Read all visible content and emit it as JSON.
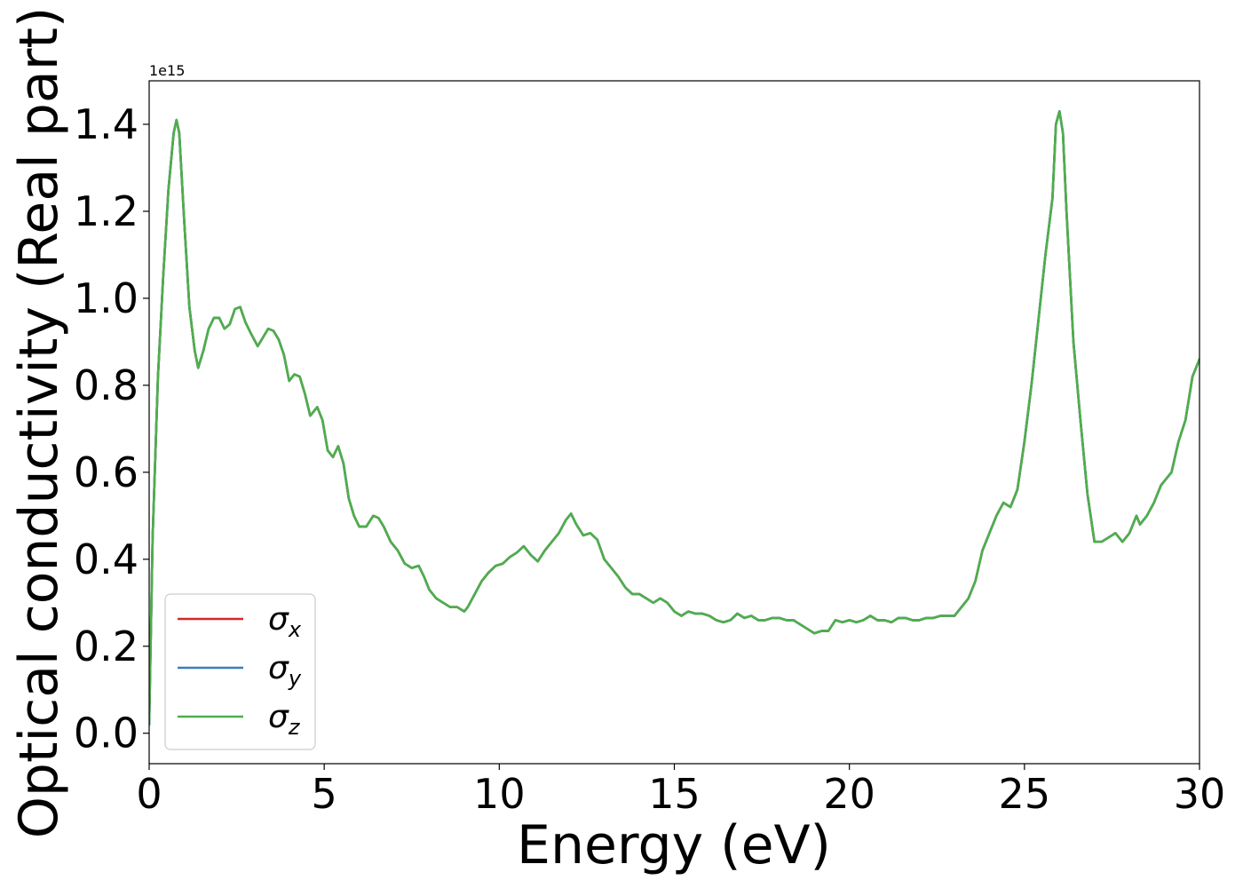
{
  "chart_data": {
    "type": "line",
    "title": "",
    "xlabel": "Energy (eV)",
    "ylabel": "Optical conductivity (Real part)",
    "y_offset_text": "1e15",
    "y_multiplier": 1000000000000000.0,
    "xlim": [
      0,
      30
    ],
    "ylim": [
      -0.07,
      1.5
    ],
    "xticks": [
      0,
      5,
      10,
      15,
      20,
      25,
      30
    ],
    "xtick_labels": [
      "0",
      "5",
      "10",
      "15",
      "20",
      "25",
      "30"
    ],
    "yticks": [
      0.0,
      0.2,
      0.4,
      0.6,
      0.8,
      1.0,
      1.2,
      1.4
    ],
    "ytick_labels": [
      "0.0",
      "0.2",
      "0.4",
      "0.6",
      "0.8",
      "1.0",
      "1.2",
      "1.4"
    ],
    "grid": false,
    "legend_position": "lower-left",
    "series": [
      {
        "name": "σx",
        "symbol": "σ",
        "subscript": "x",
        "color": "#d62728",
        "values_same_as": "σz"
      },
      {
        "name": "σy",
        "symbol": "σ",
        "subscript": "y",
        "color": "#3a7dbf",
        "values_same_as": "σz"
      },
      {
        "name": "σz",
        "symbol": "σ",
        "subscript": "z",
        "color": "#4daf4a",
        "x": [
          0,
          0.1,
          0.25,
          0.4,
          0.55,
          0.7,
          0.78,
          0.86,
          1.0,
          1.15,
          1.3,
          1.4,
          1.55,
          1.7,
          1.85,
          2.0,
          2.15,
          2.3,
          2.45,
          2.6,
          2.75,
          2.9,
          3.1,
          3.25,
          3.4,
          3.55,
          3.7,
          3.85,
          4.0,
          4.15,
          4.3,
          4.45,
          4.6,
          4.8,
          4.95,
          5.1,
          5.25,
          5.4,
          5.55,
          5.7,
          5.85,
          6.0,
          6.2,
          6.4,
          6.55,
          6.7,
          6.9,
          7.1,
          7.3,
          7.5,
          7.7,
          7.85,
          8.0,
          8.2,
          8.4,
          8.6,
          8.8,
          9.0,
          9.1,
          9.3,
          9.5,
          9.7,
          9.9,
          10.1,
          10.3,
          10.5,
          10.7,
          10.9,
          11.1,
          11.3,
          11.5,
          11.7,
          11.9,
          12.05,
          12.2,
          12.4,
          12.6,
          12.8,
          13.0,
          13.2,
          13.4,
          13.6,
          13.8,
          14.0,
          14.2,
          14.4,
          14.6,
          14.8,
          15.0,
          15.2,
          15.4,
          15.6,
          15.8,
          16.0,
          16.2,
          16.4,
          16.6,
          16.8,
          17.0,
          17.2,
          17.4,
          17.6,
          17.8,
          18.0,
          18.2,
          18.4,
          18.6,
          18.8,
          19.0,
          19.2,
          19.4,
          19.6,
          19.8,
          20.0,
          20.2,
          20.4,
          20.6,
          20.8,
          21.0,
          21.2,
          21.4,
          21.6,
          21.8,
          22.0,
          22.2,
          22.4,
          22.6,
          22.8,
          23.0,
          23.2,
          23.4,
          23.6,
          23.8,
          24.0,
          24.2,
          24.4,
          24.6,
          24.8,
          25.0,
          25.2,
          25.4,
          25.6,
          25.8,
          25.9,
          26.0,
          26.1,
          26.2,
          26.4,
          26.6,
          26.8,
          27.0,
          27.2,
          27.4,
          27.6,
          27.8,
          28.0,
          28.2,
          28.3,
          28.5,
          28.7,
          28.9,
          29.0,
          29.2,
          29.4,
          29.6,
          29.8,
          30.0
        ],
        "y": [
          0.02,
          0.45,
          0.82,
          1.05,
          1.25,
          1.38,
          1.41,
          1.38,
          1.18,
          0.98,
          0.88,
          0.84,
          0.88,
          0.93,
          0.955,
          0.955,
          0.93,
          0.94,
          0.975,
          0.98,
          0.945,
          0.92,
          0.89,
          0.91,
          0.93,
          0.925,
          0.905,
          0.87,
          0.81,
          0.825,
          0.82,
          0.78,
          0.73,
          0.75,
          0.72,
          0.65,
          0.635,
          0.66,
          0.62,
          0.54,
          0.5,
          0.475,
          0.475,
          0.5,
          0.495,
          0.475,
          0.44,
          0.42,
          0.39,
          0.38,
          0.385,
          0.36,
          0.33,
          0.31,
          0.3,
          0.29,
          0.29,
          0.28,
          0.29,
          0.32,
          0.35,
          0.37,
          0.385,
          0.39,
          0.405,
          0.415,
          0.43,
          0.41,
          0.395,
          0.42,
          0.44,
          0.46,
          0.49,
          0.505,
          0.48,
          0.455,
          0.46,
          0.445,
          0.4,
          0.38,
          0.36,
          0.335,
          0.32,
          0.32,
          0.31,
          0.3,
          0.31,
          0.3,
          0.28,
          0.27,
          0.28,
          0.275,
          0.275,
          0.27,
          0.26,
          0.255,
          0.26,
          0.275,
          0.265,
          0.27,
          0.26,
          0.26,
          0.265,
          0.265,
          0.26,
          0.26,
          0.25,
          0.24,
          0.23,
          0.235,
          0.235,
          0.26,
          0.255,
          0.26,
          0.255,
          0.26,
          0.27,
          0.26,
          0.26,
          0.255,
          0.265,
          0.265,
          0.26,
          0.26,
          0.265,
          0.265,
          0.27,
          0.27,
          0.27,
          0.29,
          0.31,
          0.35,
          0.42,
          0.46,
          0.5,
          0.53,
          0.52,
          0.56,
          0.67,
          0.8,
          0.95,
          1.1,
          1.23,
          1.4,
          1.43,
          1.38,
          1.2,
          0.9,
          0.72,
          0.55,
          0.44,
          0.44,
          0.45,
          0.46,
          0.44,
          0.46,
          0.5,
          0.48,
          0.5,
          0.53,
          0.57,
          0.58,
          0.6,
          0.67,
          0.72,
          0.82,
          0.86
        ]
      }
    ]
  }
}
